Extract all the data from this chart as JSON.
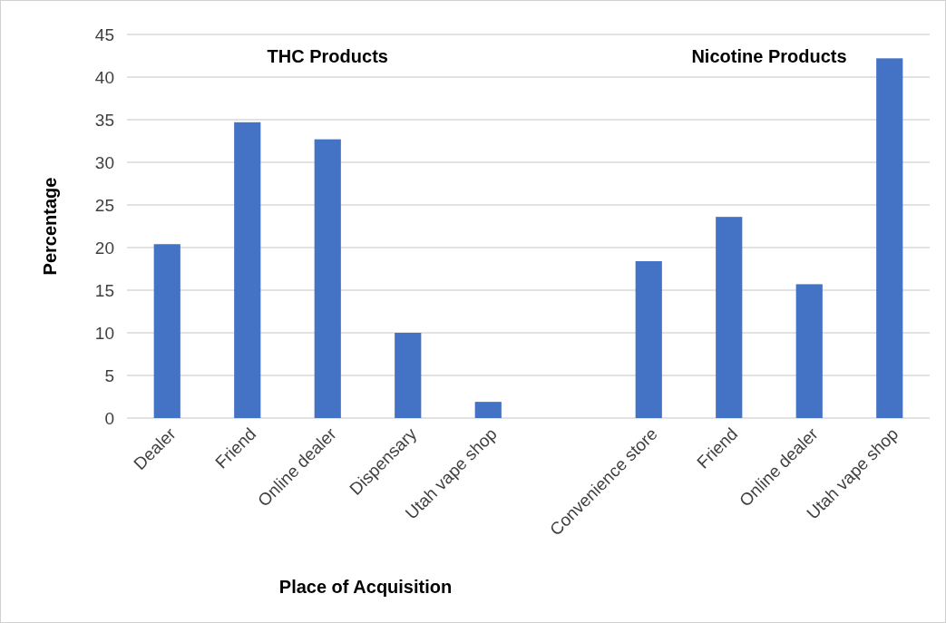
{
  "chart_data": {
    "type": "bar",
    "xlabel": "Place of Acquisition",
    "ylabel": "Percentage",
    "categories": [
      "Dealer",
      "Friend",
      "Online dealer",
      "Dispensary",
      "Utah vape shop",
      null,
      "Convenience store",
      "Friend",
      "Online dealer",
      "Utah vape shop"
    ],
    "values": [
      20.4,
      34.7,
      32.7,
      10.0,
      1.9,
      null,
      18.4,
      23.6,
      15.7,
      42.2
    ],
    "color": "#4472c4",
    "annotations": [
      {
        "text": "THC Products"
      },
      {
        "text": "Nicotine Products"
      }
    ],
    "ylim": [
      0,
      45
    ],
    "yticks": [
      0,
      5,
      10,
      15,
      20,
      25,
      30,
      35,
      40,
      45
    ],
    "grid": "y"
  }
}
